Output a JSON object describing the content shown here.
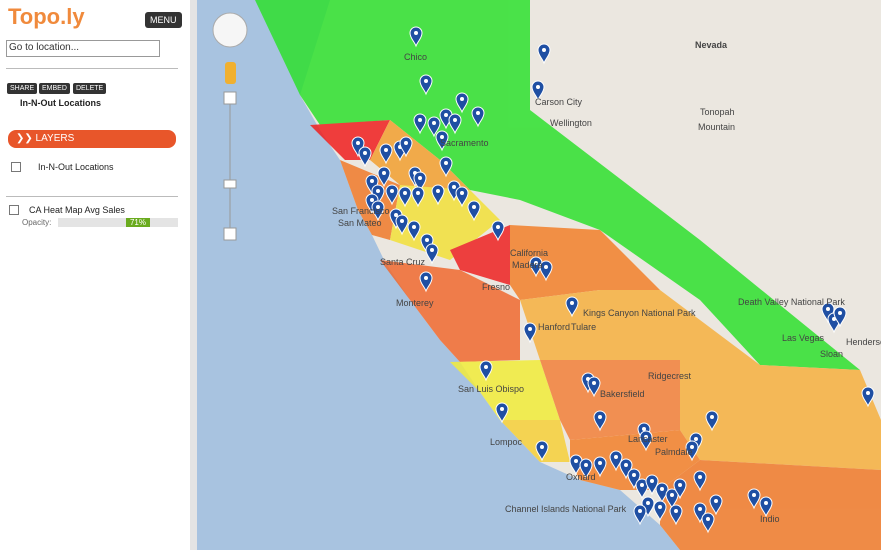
{
  "app": {
    "logo": "Topo.ly",
    "menu": "MENU",
    "search_placeholder": "Go to location...",
    "buttons": [
      "SHARE",
      "EMBED",
      "DELETE"
    ],
    "map_title": "In-N-Out Locations",
    "layers_header": "LAYERS",
    "layers": [
      {
        "name": "In-N-Out Locations"
      },
      {
        "name": "CA Heat Map Avg Sales",
        "opacity_label": "Opacity:",
        "opacity": "71%"
      }
    ]
  },
  "map": {
    "labels": [
      "Nevada",
      "Carson City",
      "Wellington",
      "Tonopah",
      "Mountain",
      "Sacramento",
      "Chico",
      "San Francisco",
      "San Mateo",
      "California",
      "Fresno",
      "Madera",
      "Death Valley National Park",
      "Las Vegas",
      "Henderson",
      "Sloan",
      "Bakersfield",
      "Ridgecrest",
      "Tulare",
      "Kings Canyon National Park",
      "Hanford",
      "Monterey",
      "San Luis Obispo",
      "Lompoc",
      "Lancaster",
      "Palmdale",
      "Oxnard",
      "Channel Islands National Park",
      "Indio",
      "Santa Cruz"
    ]
  }
}
